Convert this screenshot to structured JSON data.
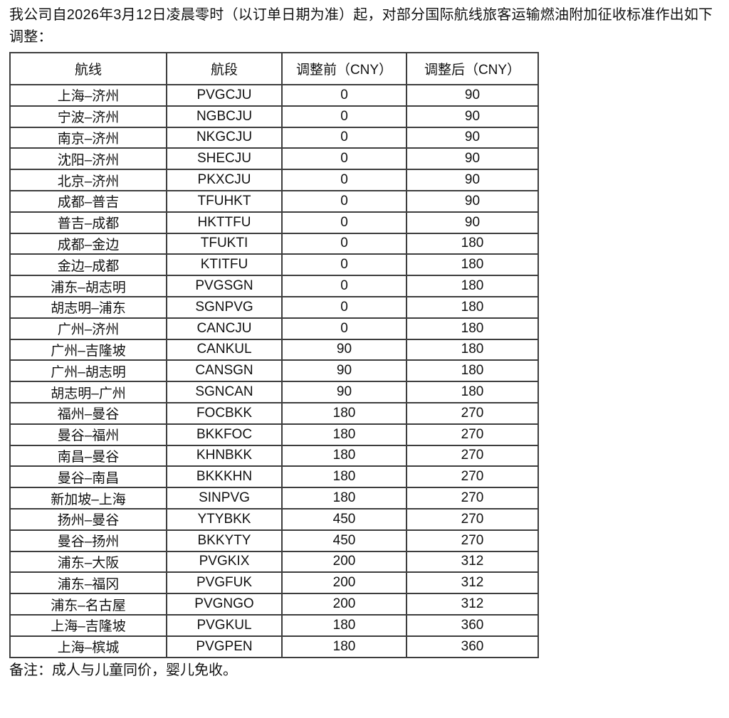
{
  "document": {
    "intro": "我公司自2026年3月12日凌晨零时（以订单日期为准）起，对部分国际航线旅客运输燃油附加征收标准作出如下调整：",
    "note": "备注：成人与儿童同价，婴儿免收。"
  },
  "table": {
    "columns": [
      "航线",
      "航段",
      "调整前（CNY）",
      "调整后（CNY）"
    ],
    "rows": [
      [
        "上海–济州",
        "PVGCJU",
        "0",
        "90"
      ],
      [
        "宁波–济州",
        "NGBCJU",
        "0",
        "90"
      ],
      [
        "南京–济州",
        "NKGCJU",
        "0",
        "90"
      ],
      [
        "沈阳–济州",
        "SHECJU",
        "0",
        "90"
      ],
      [
        "北京–济州",
        "PKXCJU",
        "0",
        "90"
      ],
      [
        "成都–普吉",
        "TFUHKT",
        "0",
        "90"
      ],
      [
        "普吉–成都",
        "HKTTFU",
        "0",
        "90"
      ],
      [
        "成都–金边",
        "TFUKTI",
        "0",
        "180"
      ],
      [
        "金边–成都",
        "KTITFU",
        "0",
        "180"
      ],
      [
        "浦东–胡志明",
        "PVGSGN",
        "0",
        "180"
      ],
      [
        "胡志明–浦东",
        "SGNPVG",
        "0",
        "180"
      ],
      [
        "广州–济州",
        "CANCJU",
        "0",
        "180"
      ],
      [
        "广州–吉隆坡",
        "CANKUL",
        "90",
        "180"
      ],
      [
        "广州–胡志明",
        "CANSGN",
        "90",
        "180"
      ],
      [
        "胡志明–广州",
        "SGNCAN",
        "90",
        "180"
      ],
      [
        "福州–曼谷",
        "FOCBKK",
        "180",
        "270"
      ],
      [
        "曼谷–福州",
        "BKKFOC",
        "180",
        "270"
      ],
      [
        "南昌–曼谷",
        "KHNBKK",
        "180",
        "270"
      ],
      [
        "曼谷–南昌",
        "BKKKHN",
        "180",
        "270"
      ],
      [
        "新加坡–上海",
        "SINPVG",
        "180",
        "270"
      ],
      [
        "扬州–曼谷",
        "YTYBKK",
        "450",
        "270"
      ],
      [
        "曼谷–扬州",
        "BKKYTY",
        "450",
        "270"
      ],
      [
        "浦东–大阪",
        "PVGKIX",
        "200",
        "312"
      ],
      [
        "浦东–福冈",
        "PVGFUK",
        "200",
        "312"
      ],
      [
        "浦东–名古屋",
        "PVGNGO",
        "200",
        "312"
      ],
      [
        "上海–吉隆坡",
        "PVGKUL",
        "180",
        "360"
      ],
      [
        "上海–槟城",
        "PVGPEN",
        "180",
        "360"
      ]
    ]
  }
}
